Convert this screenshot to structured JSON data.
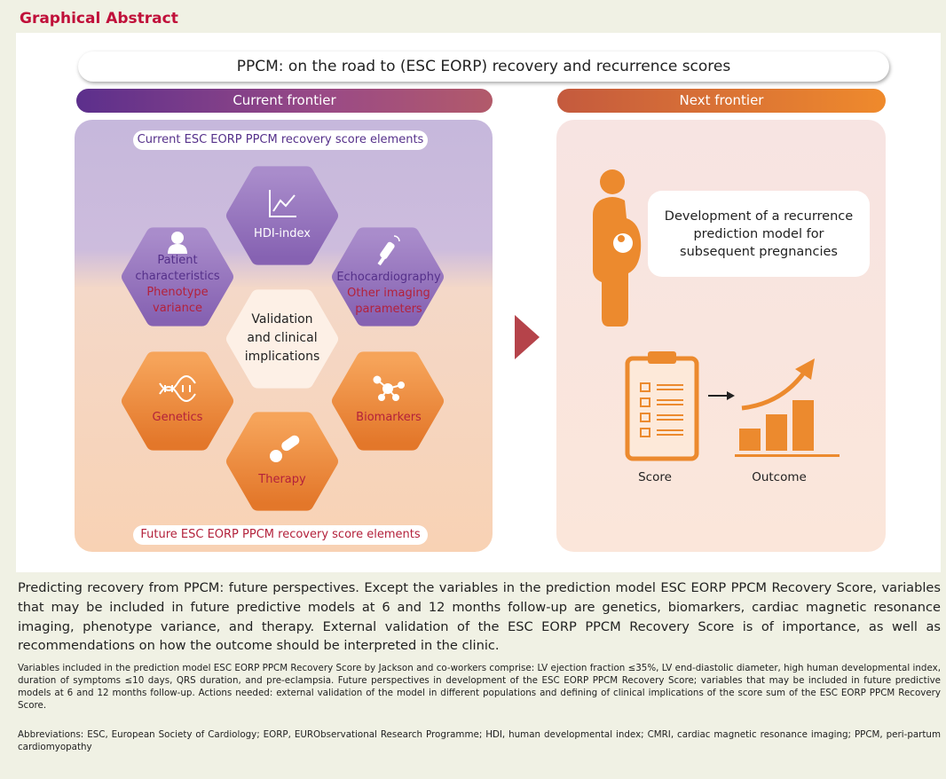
{
  "header": {
    "title": "Graphical Abstract"
  },
  "banner": {
    "title": "PPCM: on the road to (ESC EORP) recovery and recurrence scores"
  },
  "current_frontier": {
    "heading": "Current frontier",
    "top_label": "Current ESC EORP PPCM recovery score elements",
    "bottom_label": "Future ESC EORP PPCM recovery score elements",
    "center": "Validation and clinical implications",
    "elements": [
      {
        "label": "HDI-index"
      },
      {
        "label": "Patient characteristics",
        "extra": "Phenotype variance"
      },
      {
        "label": "Echocardiography",
        "extra": "Other imaging parameters"
      },
      {
        "label": "Genetics"
      },
      {
        "label": "Biomarkers"
      },
      {
        "label": "Therapy"
      }
    ]
  },
  "next_frontier": {
    "heading": "Next frontier",
    "description": "Development of a recurrence prediction model for subsequent pregnancies",
    "score_label": "Score",
    "outcome_label": "Outcome"
  },
  "caption": {
    "summary": "Predicting recovery from PPCM: future perspectives. Except the variables in the prediction model ESC EORP PPCM Recovery Score, variables that may be included in future predictive models at 6 and 12 months follow-up are genetics, biomarkers, cardiac magnetic resonance imaging, phenotype variance, and therapy. External validation of the ESC EORP PPCM Recovery Score is of importance, as well as recommendations on how the outcome should be interpreted in the clinic.",
    "details": "Variables included in the prediction model ESC EORP PPCM Recovery Score by Jackson and co-workers comprise: LV ejection fraction ≤35%, LV end-diastolic diameter, high human developmental index, duration of symptoms ≤10 days, QRS duration, and pre-eclampsia. Future perspectives in development of the ESC EORP PPCM Recovery Score; variables that may be included in future predictive models at 6 and 12 months follow-up. Actions needed: external validation of the model in different populations and defining of clinical implications of the score sum of the ESC EORP PPCM Recovery Score.",
    "abbreviations": "Abbreviations: ESC, European Society of Cardiology; EORP, EURObservational Research Programme; HDI, human developmental index; CMRI, cardiac magnetic resonance imaging; PPCM, peri-partum cardiomyopathy"
  }
}
